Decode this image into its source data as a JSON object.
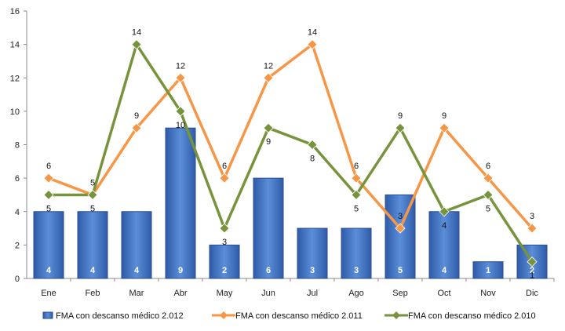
{
  "chart_data": {
    "type": "bar+line",
    "categories": [
      "Ene",
      "Feb",
      "Mar",
      "Abr",
      "May",
      "Jun",
      "Jul",
      "Ago",
      "Sep",
      "Oct",
      "Nov",
      "Dic"
    ],
    "ylim": [
      0,
      16
    ],
    "yticks": [
      0,
      2,
      4,
      6,
      8,
      10,
      12,
      14,
      16
    ],
    "grid": false,
    "legend_position": "bottom",
    "series": [
      {
        "name": "FMA con descanso médico 2.012",
        "type": "bar",
        "values": [
          4,
          4,
          4,
          9,
          2,
          6,
          3,
          3,
          5,
          4,
          1,
          2
        ],
        "color": "#3f6fbf"
      },
      {
        "name": "FMA con descanso médico 2.011",
        "type": "line",
        "values": [
          6,
          5,
          9,
          12,
          6,
          12,
          14,
          6,
          3,
          9,
          6,
          3
        ],
        "color": "#f79646"
      },
      {
        "name": "FMA con descanso médico 2.010",
        "type": "line",
        "values": [
          5,
          5,
          14,
          10,
          3,
          9,
          8,
          5,
          9,
          4,
          5,
          1
        ],
        "color": "#77933c"
      }
    ]
  }
}
